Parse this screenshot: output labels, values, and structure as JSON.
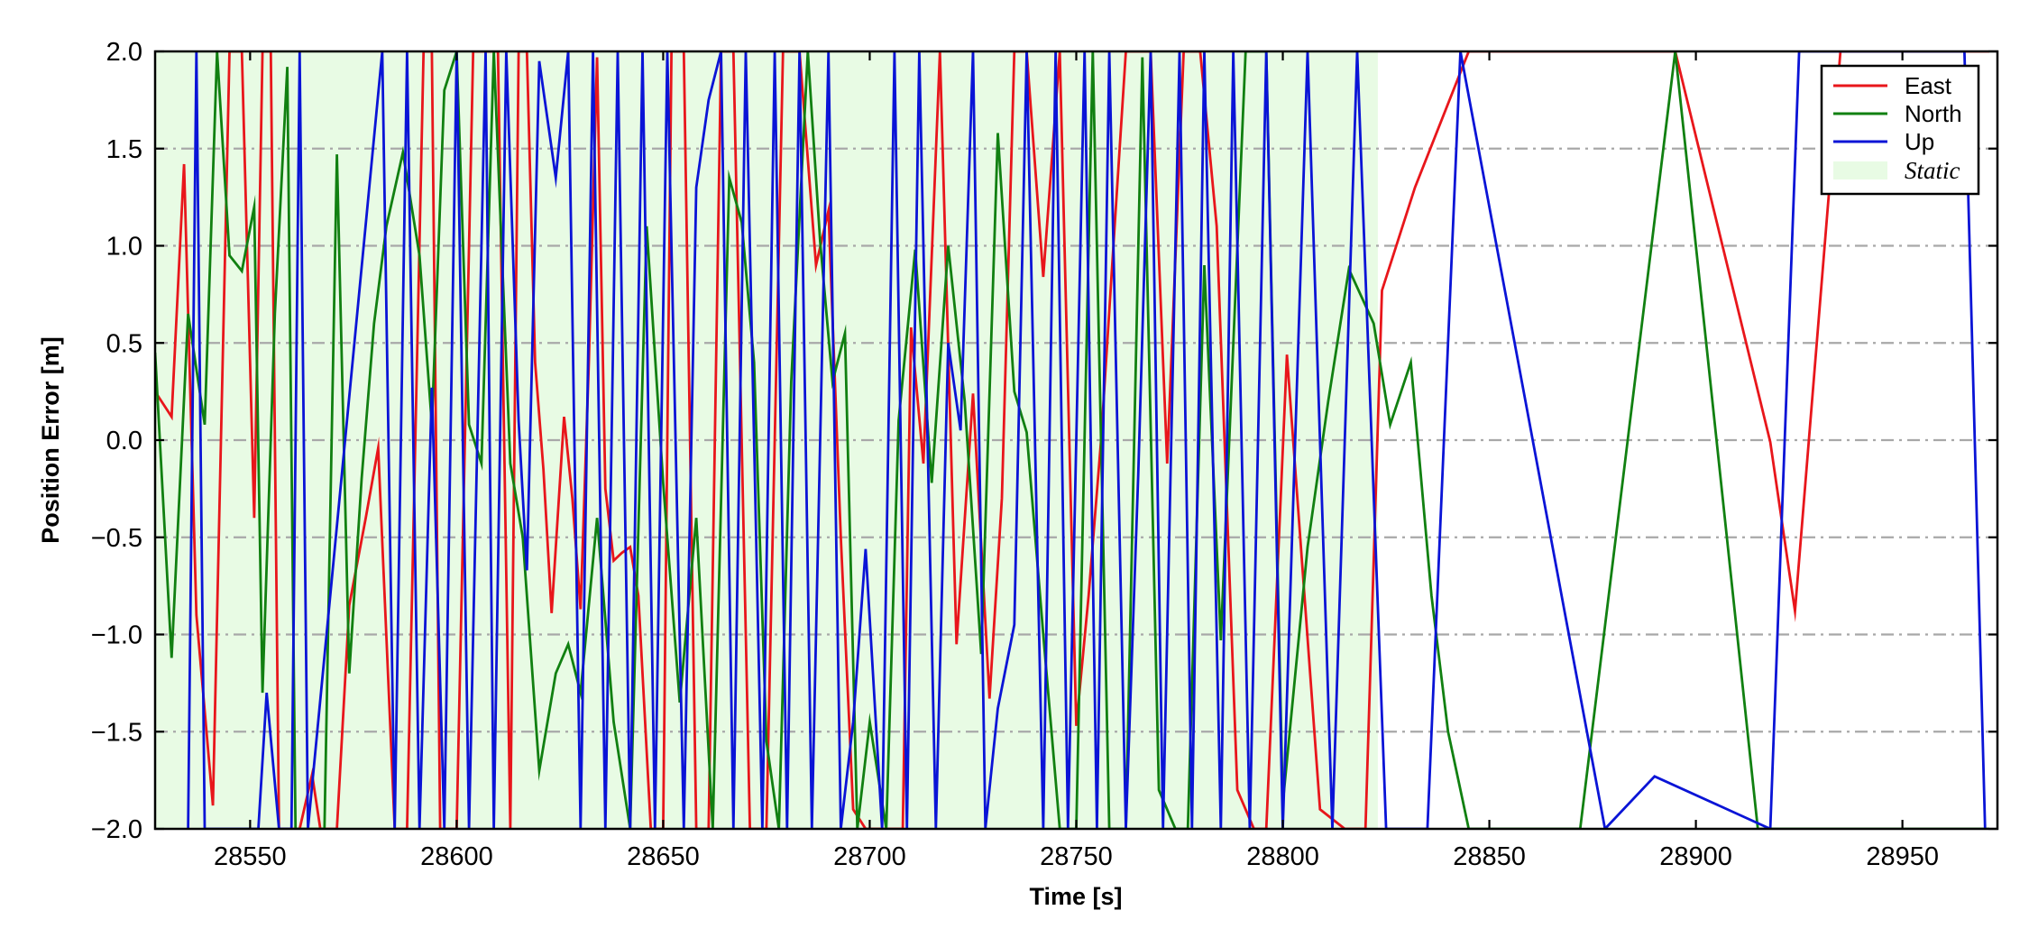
{
  "chart_data": {
    "type": "line",
    "title": "",
    "xlabel": "Time [s]",
    "ylabel": "Position Error [m]",
    "xlim": [
      28527,
      28973
    ],
    "ylim": [
      -2.0,
      2.0
    ],
    "xticks": [
      28550,
      28600,
      28650,
      28700,
      28750,
      28800,
      28850,
      28900,
      28950
    ],
    "xtick_labels": [
      "28550",
      "28600",
      "28650",
      "28700",
      "28750",
      "28800",
      "28850",
      "28900",
      "28950"
    ],
    "yticks": [
      -2.0,
      -1.5,
      -1.0,
      -0.5,
      0.0,
      0.5,
      1.0,
      1.5,
      2.0
    ],
    "ytick_labels": [
      "−2.0",
      "−1.5",
      "−1.0",
      "−0.5",
      "0.0",
      "0.5",
      "1.0",
      "1.5",
      "2.0"
    ],
    "grid": "horizontal dash-dot",
    "legend_position": "top-right",
    "static_region": {
      "label": "Static",
      "x_start": 28527,
      "x_end": 28823,
      "color": "#e8fbe4"
    },
    "series": [
      {
        "name": "East",
        "color": "#e8161b",
        "x": [
          28527,
          28531,
          28534,
          28537,
          28541,
          28545,
          28548,
          28551,
          28553,
          28555,
          28557,
          28559,
          28562,
          28565,
          28567,
          28569,
          28571,
          28574,
          28578,
          28581,
          28585,
          28588,
          28592,
          28594,
          28596,
          28600,
          28604,
          28608,
          28610,
          28613,
          28615,
          28617,
          28619,
          28621,
          28623,
          28626,
          28628,
          28630,
          28632,
          28634,
          28636,
          28638,
          28640,
          28642,
          28644,
          28647,
          28650,
          28652,
          28655,
          28658,
          28661,
          28664,
          28667,
          28671,
          28675,
          28679,
          28683,
          28687,
          28690,
          28693,
          28696,
          28699,
          28702,
          28705,
          28708,
          28710,
          28713,
          28717,
          28721,
          28725,
          28729,
          28732,
          28735,
          28738,
          28742,
          28746,
          28750,
          28753,
          28756,
          28759,
          28762,
          28765,
          28768,
          28772,
          28776,
          28780,
          28784,
          28789,
          28793,
          28796,
          28801,
          28809,
          28815,
          28820,
          28824,
          28832,
          28845,
          28885,
          28895,
          28918,
          28924,
          28935,
          28945,
          28950,
          28958,
          28966,
          28971
        ],
        "values": [
          0.25,
          0.12,
          1.42,
          -0.9,
          -1.88,
          2.0,
          2.0,
          -0.4,
          2.0,
          2.0,
          -2.0,
          -2.0,
          -2.0,
          -1.72,
          -2.0,
          -2.0,
          -2.0,
          -0.85,
          -0.4,
          -0.04,
          -2.0,
          -2.0,
          2.0,
          2.0,
          -2.0,
          -2.0,
          2.0,
          2.0,
          2.0,
          -2.0,
          2.0,
          2.0,
          0.4,
          -0.15,
          -0.89,
          0.12,
          -0.3,
          -0.87,
          0.4,
          1.97,
          -0.25,
          -0.62,
          -0.58,
          -0.55,
          -0.8,
          -2.0,
          -2.0,
          2.0,
          2.0,
          -2.0,
          -2.0,
          2.0,
          2.0,
          -2.0,
          -2.0,
          2.0,
          2.0,
          0.9,
          1.18,
          -0.5,
          -1.9,
          -2.0,
          -2.0,
          -2.0,
          -2.0,
          0.58,
          -0.12,
          2.0,
          -1.05,
          0.24,
          -1.33,
          -0.3,
          2.0,
          2.0,
          0.84,
          2.0,
          -1.47,
          -0.8,
          0.0,
          1.0,
          2.0,
          2.0,
          2.0,
          -0.12,
          2.0,
          2.0,
          1.1,
          -1.8,
          -2.0,
          -2.0,
          0.44,
          -1.9,
          -2.0,
          -2.0,
          0.77,
          1.3,
          2.0,
          2.0,
          2.0,
          -0.01,
          -0.88,
          2.0,
          2.0,
          2.0,
          2.0,
          2.0,
          2.0
        ]
      },
      {
        "name": "North",
        "color": "#118011",
        "x": [
          28527,
          28531,
          28535,
          28539,
          28542,
          28545,
          28548,
          28551,
          28553,
          28556,
          28559,
          28561,
          28565,
          28568,
          28571,
          28574,
          28577,
          28580,
          28583,
          28587,
          28591,
          28594,
          28597,
          28600,
          28603,
          28606,
          28609,
          28613,
          28616,
          28620,
          28624,
          28627,
          28630,
          28634,
          28638,
          28642,
          28646,
          28650,
          28654,
          28658,
          28662,
          28666,
          28669,
          28672,
          28675,
          28678,
          28681,
          28685,
          28688,
          28691,
          28694,
          28697,
          28700,
          28704,
          28707,
          28711,
          28715,
          28719,
          28723,
          28727,
          28731,
          28735,
          28738,
          28742,
          28746,
          28750,
          28754,
          28758,
          28762,
          28766,
          28770,
          28774,
          28777,
          28781,
          28785,
          28791,
          28796,
          28800,
          28806,
          28811,
          28816,
          28822,
          28826,
          28831,
          28836,
          28840,
          28845,
          28872,
          28895,
          28915,
          28925,
          28935,
          28940,
          28945,
          28950,
          28955,
          28960,
          28966,
          28971
        ],
        "values": [
          0.45,
          -1.12,
          0.65,
          0.08,
          2.0,
          0.95,
          0.87,
          1.2,
          -1.3,
          0.65,
          1.92,
          -2.0,
          -2.0,
          -2.0,
          1.47,
          -1.2,
          -0.2,
          0.6,
          1.1,
          1.48,
          0.95,
          0.08,
          1.8,
          2.0,
          0.08,
          -0.12,
          2.0,
          -0.12,
          -0.5,
          -1.7,
          -1.2,
          -1.05,
          -1.3,
          -0.4,
          -1.45,
          -2.0,
          1.1,
          -0.22,
          -1.35,
          -0.4,
          -2.0,
          1.35,
          1.12,
          0.4,
          -1.55,
          -2.0,
          0.3,
          2.0,
          1.02,
          0.3,
          0.55,
          -2.0,
          -1.45,
          -2.0,
          0.1,
          0.98,
          -0.22,
          1.0,
          0.2,
          -1.1,
          1.58,
          0.25,
          0.04,
          -1.0,
          -2.0,
          -2.0,
          2.0,
          -2.0,
          -2.0,
          1.97,
          -1.8,
          -2.0,
          -2.0,
          0.9,
          -1.03,
          2.0,
          2.0,
          -1.87,
          -0.55,
          0.2,
          0.88,
          0.6,
          0.08,
          0.4,
          -0.8,
          -1.5,
          -2.0,
          -2.0,
          2.0,
          -2.0,
          -2.0,
          -2.0,
          -2.0,
          -2.0,
          -2.0,
          -2.0,
          -2.0,
          -2.0,
          -2.0
        ]
      },
      {
        "name": "Up",
        "color": "#0a14d6",
        "x": [
          28535,
          28537,
          28539,
          28549,
          28552,
          28554,
          28557,
          28560,
          28562,
          28564,
          28582,
          28585,
          28588,
          28591,
          28594,
          28597,
          28600,
          28603,
          28607,
          28609,
          28612,
          28615,
          28617,
          28620,
          28624,
          28627,
          28630,
          28633,
          28636,
          28639,
          28642,
          28645,
          28648,
          28651,
          28655,
          28658,
          28661,
          28664,
          28667,
          28670,
          28674,
          28677,
          28680,
          28683,
          28686,
          28690,
          28693,
          28696,
          28699,
          28703,
          28706,
          28709,
          28712,
          28716,
          28719,
          28722,
          28725,
          28728,
          28731,
          28735,
          28738,
          28742,
          28745,
          28748,
          28752,
          28755,
          28758,
          28762,
          28765,
          28768,
          28771,
          28775,
          28778,
          28781,
          28785,
          28788,
          28792,
          28796,
          28800,
          28806,
          28812,
          28818,
          28825,
          28835,
          28843,
          28878,
          28890,
          28918,
          28925,
          28932,
          28940,
          28948,
          28955,
          28960,
          28965,
          28970
        ],
        "values": [
          -2.0,
          2.0,
          -2.0,
          -2.0,
          -2.0,
          -1.3,
          -2.0,
          -2.0,
          2.0,
          -2.0,
          2.0,
          -2.0,
          2.0,
          -2.0,
          0.27,
          -2.0,
          2.0,
          -2.0,
          2.0,
          -2.0,
          2.0,
          0.1,
          -0.67,
          1.95,
          1.35,
          2.0,
          -2.0,
          2.0,
          -2.0,
          2.0,
          -2.0,
          2.0,
          -2.0,
          2.0,
          -2.0,
          1.3,
          1.75,
          2.0,
          -2.0,
          2.0,
          -2.0,
          2.0,
          -2.0,
          2.0,
          -2.0,
          2.0,
          -2.0,
          -1.45,
          -0.56,
          -2.0,
          2.0,
          -2.0,
          2.0,
          -2.0,
          0.5,
          0.05,
          2.0,
          -2.0,
          -1.38,
          -0.95,
          2.0,
          -2.0,
          2.0,
          -2.0,
          2.0,
          -2.0,
          2.0,
          -2.0,
          -0.18,
          2.0,
          -2.0,
          2.0,
          -2.0,
          2.0,
          -2.0,
          2.0,
          -2.0,
          2.0,
          -2.0,
          2.0,
          -2.0,
          2.0,
          -2.0,
          -2.0,
          2.0,
          -2.0,
          -1.73,
          -2.0,
          2.0,
          2.0,
          2.0,
          2.0,
          2.0,
          2.0,
          2.0,
          -2.0
        ]
      }
    ]
  }
}
